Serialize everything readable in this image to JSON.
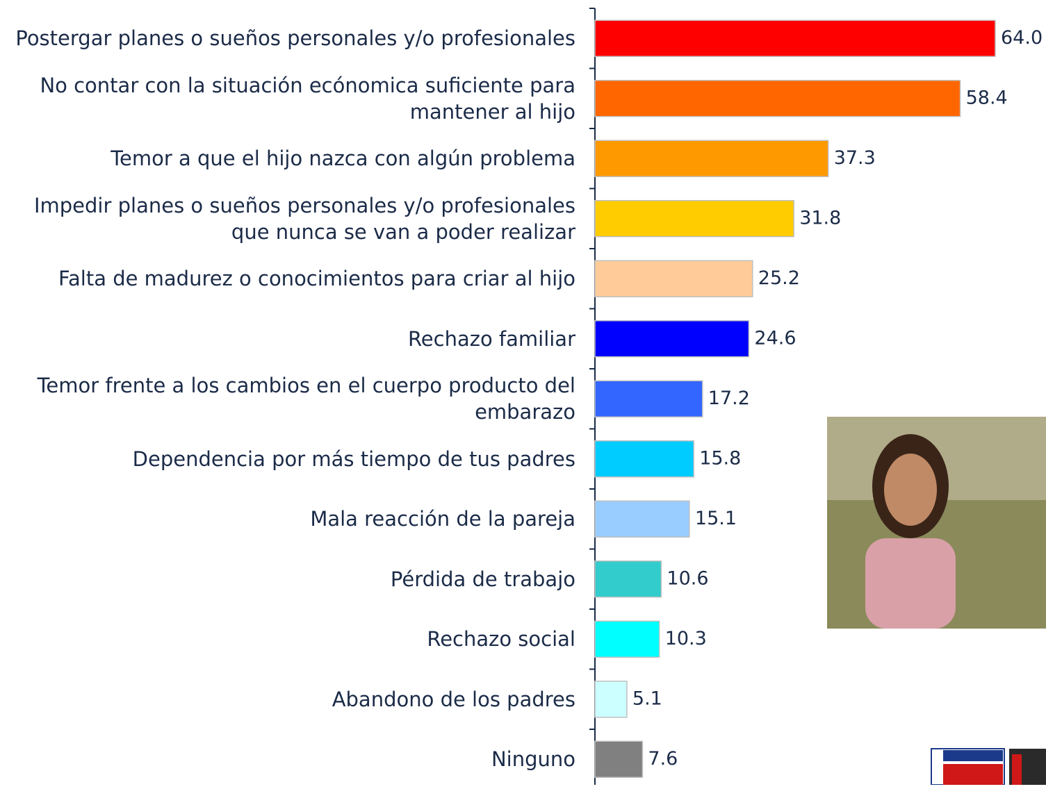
{
  "chart_data": {
    "type": "barh",
    "categories": [
      "Postergar planes o sueños personales y/o profesionales",
      "No contar con la situación ecónomica suficiente para mantener al hijo",
      "Temor a que el hijo nazca con algún problema",
      "Impedir  planes o sueños personales y/o profesionales que nunca se van a poder realizar",
      "Falta de madurez o conocimientos para criar al hijo",
      "Rechazo familiar",
      "Temor frente a los cambios en el cuerpo producto del embarazo",
      "Dependencia por más tiempo de tus padres",
      "Mala reacción de la pareja",
      "Pérdida de trabajo",
      "Rechazo social",
      "Abandono de los padres",
      "Ninguno"
    ],
    "values": [
      64.0,
      58.4,
      37.3,
      31.8,
      25.2,
      24.6,
      17.2,
      15.8,
      15.1,
      10.6,
      10.3,
      5.1,
      7.6
    ],
    "value_labels": [
      "64.0",
      "58.4",
      "37.3",
      "31.8",
      "25.2",
      "24.6",
      "17.2",
      "15.8",
      "15.1",
      "10.6",
      "10.3",
      "5.1",
      "7.6"
    ],
    "colors": [
      "#ff0000",
      "#ff6600",
      "#ff9900",
      "#ffcc00",
      "#ffcc99",
      "#0000ff",
      "#3366ff",
      "#00ccff",
      "#99ccff",
      "#33cccc",
      "#00ffff",
      "#ccffff",
      "#808080"
    ]
  }
}
